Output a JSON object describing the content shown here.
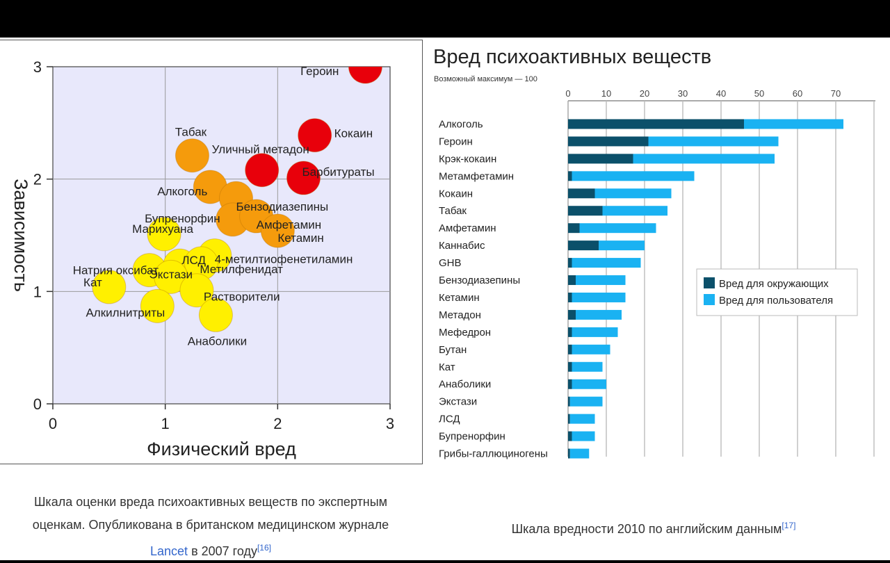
{
  "scatter": {
    "chart_data": {
      "type": "scatter",
      "xlabel": "Физический вред",
      "ylabel": "Зависимость",
      "xlim": [
        0,
        3
      ],
      "ylim": [
        0,
        3
      ],
      "xticks": [
        "0",
        "1",
        "2",
        "3"
      ],
      "yticks": [
        "0",
        "1",
        "2",
        "3"
      ],
      "grid": true,
      "points": [
        {
          "label": "Героин",
          "x": 2.78,
          "y": 3.0,
          "color": "#e8000b"
        },
        {
          "label": "Кокаин",
          "x": 2.33,
          "y": 2.39,
          "color": "#e8000b"
        },
        {
          "label": "Уличный метадон",
          "x": 1.86,
          "y": 2.08,
          "color": "#e8000b"
        },
        {
          "label": "Барбитураты",
          "x": 2.23,
          "y": 2.01,
          "color": "#e8000b"
        },
        {
          "label": "Табак",
          "x": 1.24,
          "y": 2.21,
          "color": "#f59b0c"
        },
        {
          "label": "Алкоголь",
          "x": 1.4,
          "y": 1.93,
          "color": "#f59b0c"
        },
        {
          "label": "Бензодиазепины",
          "x": 1.63,
          "y": 1.83,
          "color": "#f59b0c"
        },
        {
          "label": "Бупренорфин",
          "x": 1.6,
          "y": 1.64,
          "color": "#f59b0c"
        },
        {
          "label": "Амфетамин",
          "x": 1.81,
          "y": 1.67,
          "color": "#f59b0c"
        },
        {
          "label": "Кетамин",
          "x": 2.0,
          "y": 1.54,
          "color": "#f59b0c"
        },
        {
          "label": "Марихуана",
          "x": 0.99,
          "y": 1.51,
          "color": "#fff000"
        },
        {
          "label": "Натрия оксибат",
          "x": 0.86,
          "y": 1.19,
          "color": "#fff000"
        },
        {
          "label": "ЛСД",
          "x": 1.13,
          "y": 1.23,
          "color": "#fff000"
        },
        {
          "label": "4-метилтиофенетиламин",
          "x": 1.44,
          "y": 1.32,
          "color": "#fff000"
        },
        {
          "label": "Метилфенидат",
          "x": 1.32,
          "y": 1.25,
          "color": "#fff000"
        },
        {
          "label": "Экстази",
          "x": 1.05,
          "y": 1.13,
          "color": "#fff000"
        },
        {
          "label": "Кат",
          "x": 0.5,
          "y": 1.04,
          "color": "#fff000"
        },
        {
          "label": "Растворители",
          "x": 1.28,
          "y": 1.01,
          "color": "#fff000"
        },
        {
          "label": "Алкилнитриты",
          "x": 0.93,
          "y": 0.87,
          "color": "#fff000"
        },
        {
          "label": "Анаболики",
          "x": 1.45,
          "y": 0.79,
          "color": "#fff000"
        }
      ]
    }
  },
  "bar": {
    "chart_data": {
      "type": "bar",
      "orientation": "horizontal",
      "stacked": true,
      "title": "Вред психоактивных веществ",
      "subtitle": "Возможный максимум — 100",
      "xlim": [
        0,
        80
      ],
      "xticks": [
        "0",
        "10",
        "20",
        "30",
        "40",
        "50",
        "60",
        "70"
      ],
      "grid": true,
      "legend_position": "right",
      "categories": [
        "Алкоголь",
        "Героин",
        "Крэк-кокаин",
        "Метамфетамин",
        "Кокаин",
        "Табак",
        "Амфетамин",
        "Каннабис",
        "GHB",
        "Бензодиазепины",
        "Кетамин",
        "Метадон",
        "Мефедрон",
        "Бутан",
        "Кат",
        "Анаболики",
        "Экстази",
        "ЛСД",
        "Бупренорфин",
        "Грибы-галлюциногены"
      ],
      "series": [
        {
          "name": "Вред для окружающих",
          "color": "#0b506a",
          "values": [
            46,
            21,
            17,
            1,
            7,
            9,
            3,
            8,
            1,
            2,
            1,
            2,
            1,
            1,
            1,
            1,
            0.5,
            0.5,
            1,
            0.5
          ]
        },
        {
          "name": "Вред для пользователя",
          "color": "#1ab2f2",
          "values": [
            26,
            34,
            37,
            32,
            20,
            17,
            20,
            12,
            18,
            13,
            14,
            12,
            12,
            10,
            8,
            9,
            8.5,
            6.5,
            6,
            5
          ]
        }
      ]
    }
  },
  "captions": {
    "left_line1": "Шкала оценки вреда психоактивных веществ по экспертным",
    "left_line2": "оценкам. Опубликована в британском медицинском журнале",
    "left_link": "Lancet",
    "left_tail": " в 2007 году",
    "left_ref": "[16]",
    "right_text": "Шкала вредности 2010 по английским данным",
    "right_ref": "[17]"
  }
}
